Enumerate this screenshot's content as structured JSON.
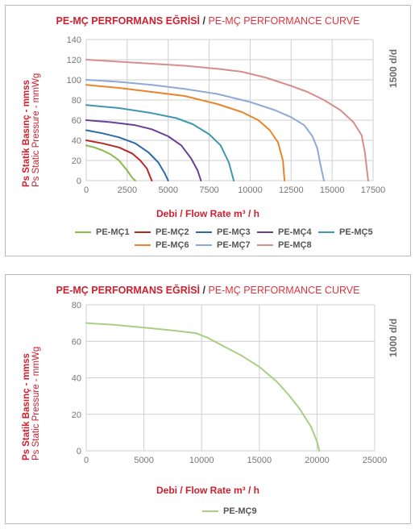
{
  "chart_data": [
    {
      "type": "line",
      "title_tr": "PE-MÇ PERFORMANS EĞRİSİ",
      "title_sep": " / ",
      "title_en": "PE-MÇ PERFORMANCE CURVE",
      "ylabel_tr": "Ps Statik Basınç - mmss",
      "ylabel_en": "Ps Static Pressure - mmWg",
      "xlabel": "Debi / Flow Rate m³ / h",
      "rpm_label": "1500 d/d",
      "xlim": [
        0,
        17500
      ],
      "ylim": [
        0,
        140
      ],
      "xticks": [
        "0",
        "2500",
        "5000",
        "7500",
        "10000",
        "12500",
        "15000",
        "17500"
      ],
      "yticks": [
        "0",
        "20",
        "40",
        "60",
        "80",
        "100",
        "120",
        "140"
      ],
      "grid": true,
      "series": [
        {
          "name": "PE-MÇ1",
          "color": "#8cb84a",
          "x": [
            0,
            500,
            1000,
            1500,
            2000,
            2500,
            2800,
            3000
          ],
          "y": [
            35,
            33,
            30,
            26,
            20,
            10,
            3,
            0
          ]
        },
        {
          "name": "PE-MÇ2",
          "color": "#b52a26",
          "x": [
            0,
            1000,
            2000,
            2800,
            3300,
            3700,
            3900,
            4000
          ],
          "y": [
            40,
            37,
            33,
            27,
            20,
            12,
            4,
            0
          ]
        },
        {
          "name": "PE-MÇ3",
          "color": "#2d6aa8",
          "x": [
            0,
            1000,
            2000,
            3000,
            3800,
            4400,
            4800,
            5000
          ],
          "y": [
            50,
            47,
            43,
            37,
            28,
            18,
            7,
            0
          ]
        },
        {
          "name": "PE-MÇ4",
          "color": "#6a3f98",
          "x": [
            0,
            1500,
            3000,
            4000,
            5000,
            5800,
            6400,
            6800,
            7000
          ],
          "y": [
            60,
            58,
            55,
            51,
            44,
            35,
            22,
            10,
            0
          ]
        },
        {
          "name": "PE-MÇ5",
          "color": "#3d97b0",
          "x": [
            0,
            2000,
            4000,
            5500,
            6500,
            7500,
            8200,
            8700,
            9000
          ],
          "y": [
            75,
            72,
            67,
            62,
            56,
            46,
            35,
            18,
            0
          ]
        },
        {
          "name": "PE-MÇ6",
          "color": "#e8842a",
          "x": [
            0,
            2000,
            4000,
            6000,
            8000,
            9500,
            10500,
            11200,
            11700,
            12000,
            12100
          ],
          "y": [
            95,
            92,
            88,
            84,
            76,
            68,
            60,
            50,
            38,
            20,
            0
          ]
        },
        {
          "name": "PE-MÇ7",
          "color": "#8ea9d8",
          "x": [
            0,
            2000,
            4000,
            6000,
            8000,
            10000,
            11500,
            12500,
            13300,
            13800,
            14100,
            14300,
            14500
          ],
          "y": [
            100,
            98,
            95,
            91,
            86,
            78,
            70,
            63,
            55,
            44,
            32,
            15,
            0
          ]
        },
        {
          "name": "PE-MÇ8",
          "color": "#d98c8c",
          "x": [
            0,
            2000,
            4000,
            6000,
            8000,
            9500,
            11000,
            12500,
            13500,
            14500,
            15500,
            16300,
            16800,
            17000,
            17200
          ],
          "y": [
            120,
            118,
            116,
            114,
            111,
            108,
            102,
            94,
            88,
            80,
            70,
            58,
            45,
            28,
            0
          ]
        }
      ]
    },
    {
      "type": "line",
      "title_tr": "PE-MÇ PERFORMANS EĞRİSİ",
      "title_sep": " / ",
      "title_en": "PE-MÇ PERFORMANCE CURVE",
      "ylabel_tr": "Ps Statik Basınç - mmss",
      "ylabel_en": "Ps Static Pressure - mmWg",
      "xlabel": "Debi / Flow Rate m³ / h",
      "rpm_label": "1000 d/d",
      "xlim": [
        0,
        25000
      ],
      "ylim": [
        0,
        80
      ],
      "xticks": [
        "0",
        "5000",
        "10000",
        "15000",
        "20000",
        "25000"
      ],
      "yticks": [
        "0",
        "20",
        "40",
        "60",
        "80"
      ],
      "grid": true,
      "series": [
        {
          "name": "PE-MÇ9",
          "color": "#a8cf82",
          "x": [
            0,
            2500,
            5000,
            7500,
            9500,
            10500,
            12000,
            13500,
            15000,
            16500,
            17500,
            18500,
            19500,
            20000,
            20200
          ],
          "y": [
            70,
            69,
            67.5,
            66,
            64.5,
            62,
            57,
            52,
            46,
            38,
            31,
            23,
            13,
            5,
            0
          ]
        }
      ]
    }
  ]
}
